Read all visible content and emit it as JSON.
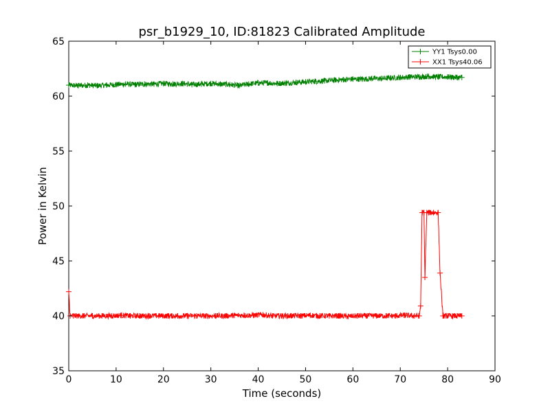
{
  "chart_data": {
    "type": "line",
    "title": "psr_b1929_10, ID:81823 Calibrated Amplitude",
    "xlabel": "Time (seconds)",
    "ylabel": "Power in Kelvin",
    "xlim": [
      0,
      90
    ],
    "ylim": [
      35,
      65
    ],
    "xticks": [
      "0",
      "10",
      "20",
      "30",
      "40",
      "50",
      "60",
      "70",
      "80",
      "90"
    ],
    "yticks": [
      "35",
      "40",
      "45",
      "50",
      "55",
      "60",
      "65"
    ],
    "grid": false,
    "legend_position": "top-right",
    "marker": "+",
    "series": [
      {
        "name": "YY1 Tsys0.00",
        "color": "#008000",
        "x": [
          0,
          2,
          4,
          6,
          8,
          10,
          12,
          14,
          16,
          18,
          20,
          22,
          24,
          26,
          28,
          30,
          32,
          34,
          36,
          38,
          40,
          42,
          44,
          46,
          48,
          50,
          52,
          54,
          56,
          58,
          60,
          62,
          64,
          66,
          68,
          70,
          72,
          74,
          76,
          78,
          80,
          82,
          83
        ],
        "y": [
          61.0,
          60.95,
          61.0,
          60.95,
          61.0,
          61.05,
          61.1,
          61.05,
          61.1,
          61.1,
          61.15,
          61.1,
          61.15,
          61.05,
          61.1,
          61.15,
          61.1,
          61.05,
          60.95,
          61.1,
          61.2,
          61.2,
          61.15,
          61.2,
          61.25,
          61.3,
          61.35,
          61.4,
          61.45,
          61.5,
          61.55,
          61.55,
          61.6,
          61.6,
          61.65,
          61.7,
          61.75,
          61.75,
          61.8,
          61.75,
          61.75,
          61.7,
          61.7
        ]
      },
      {
        "name": "XX1 Tsys40.06",
        "color": "#ff0000",
        "x": [
          0,
          0.3,
          1,
          3,
          5,
          7,
          9,
          11,
          13,
          15,
          17,
          19,
          21,
          23,
          25,
          27,
          29,
          31,
          33,
          35,
          37,
          39,
          41,
          43,
          45,
          47,
          49,
          51,
          53,
          55,
          57,
          59,
          61,
          63,
          65,
          67,
          69,
          71,
          73,
          74,
          74.3,
          74.6,
          75,
          75.2,
          75.6,
          76,
          77,
          78,
          78.4,
          79,
          80,
          81,
          82,
          83
        ],
        "y": [
          42.2,
          40.0,
          40.0,
          40.0,
          40.0,
          40.0,
          40.0,
          40.05,
          40.0,
          40.0,
          40.0,
          40.0,
          40.0,
          40.0,
          40.0,
          40.0,
          40.0,
          40.0,
          40.0,
          40.05,
          40.05,
          40.05,
          40.1,
          40.0,
          40.0,
          40.0,
          40.0,
          40.05,
          40.0,
          40.0,
          40.0,
          39.95,
          40.0,
          40.0,
          40.0,
          40.0,
          40.0,
          40.05,
          40.0,
          40.0,
          40.9,
          49.4,
          49.4,
          43.5,
          49.4,
          49.4,
          49.4,
          49.4,
          43.9,
          40.0,
          40.0,
          40.0,
          40.0,
          40.0
        ]
      }
    ]
  }
}
